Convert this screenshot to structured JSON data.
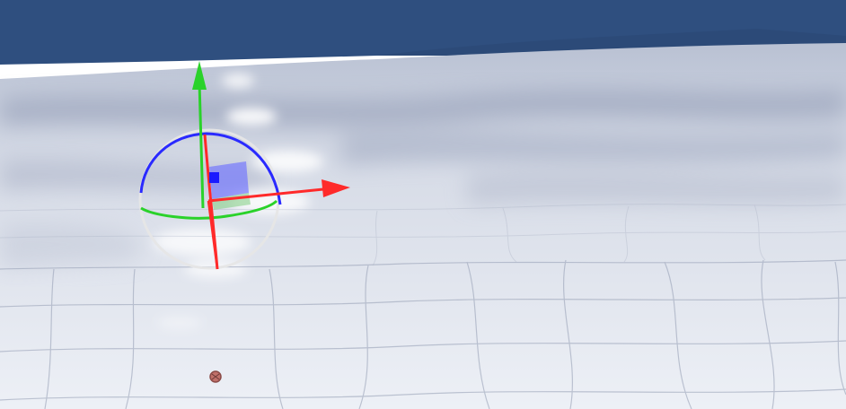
{
  "scene": {
    "view": "3d-viewport",
    "colors": {
      "sky": "#2f4f7f",
      "horizon_haze": "#ffffff",
      "far_ridge": "#2c4a78",
      "terrain_light": "#eef1f7",
      "terrain_mid": "#c9d0df",
      "terrain_shadow": "#8e98b2",
      "grid_line": "#9aa3b8",
      "axis_x": "#ff2a2a",
      "axis_y": "#2ad22a",
      "axis_z": "#2a2aff",
      "rotate_outer": "#e6e6e6",
      "plane_handle": "#6f72ff",
      "marker": "#c0706a"
    }
  },
  "gizmo": {
    "mode": "translate-rotate",
    "handles": [
      "x-axis-arrow",
      "y-axis-arrow",
      "z-axis-handle",
      "xz-plane-handle",
      "rotate-ring-x",
      "rotate-ring-y",
      "rotate-ring-z",
      "rotate-ring-outer"
    ]
  }
}
